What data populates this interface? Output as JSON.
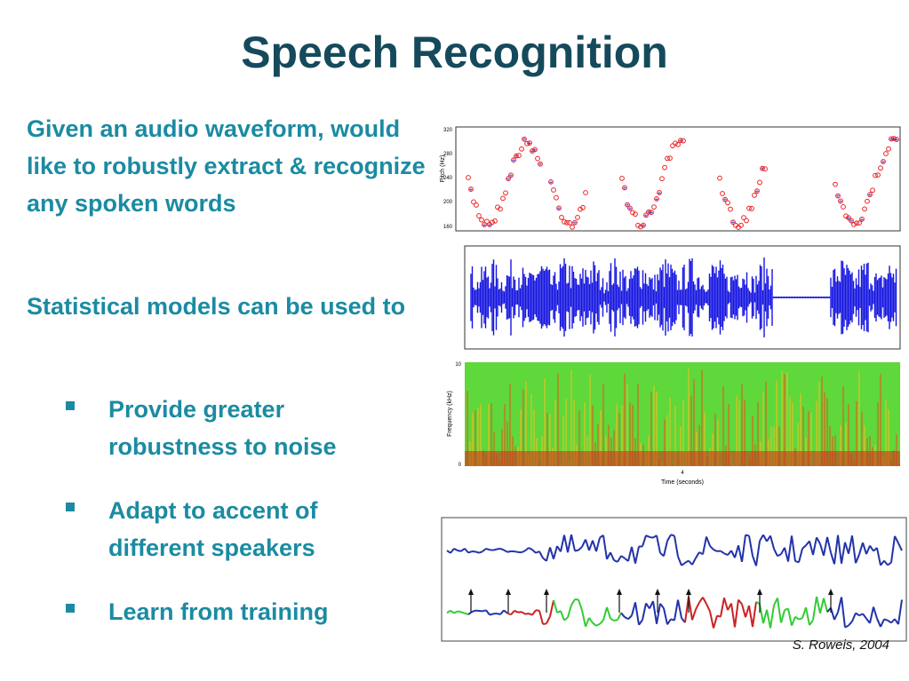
{
  "header": {
    "title": "Speech Recognition"
  },
  "body": {
    "paragraphs": [
      "Given an audio waveform, would like to robustly extract & recognize any spoken words",
      "Statistical models can be used to"
    ],
    "bullets": [
      "Provide greater robustness to noise",
      "Adapt to accent of different speakers",
      "Learn from training"
    ]
  },
  "figures": {
    "pitch": {
      "y_label": "Pitch (Hz)",
      "ticks": [
        "320",
        "280",
        "240",
        "200",
        "160"
      ]
    },
    "spectrogram": {
      "y_label": "Frequency (kHz)",
      "ticks": [
        "10",
        "0"
      ],
      "x_tick": "4",
      "x_label": "Time (seconds)"
    }
  },
  "credit": "S. Roweis, 2004"
}
